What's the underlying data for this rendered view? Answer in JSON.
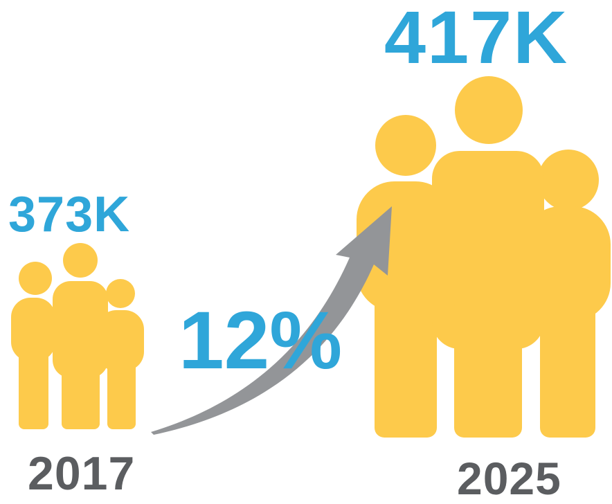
{
  "start": {
    "value": "373K",
    "year": "2017"
  },
  "end": {
    "value": "417K",
    "year": "2025"
  },
  "growth": "12%",
  "colors": {
    "figure": "#fdca4b",
    "accent": "#2fa6d9",
    "year_text": "#5b5d60",
    "arrow": "#939598"
  },
  "icons": [
    "people-group-small-icon",
    "people-group-large-icon",
    "growth-arrow-icon"
  ]
}
